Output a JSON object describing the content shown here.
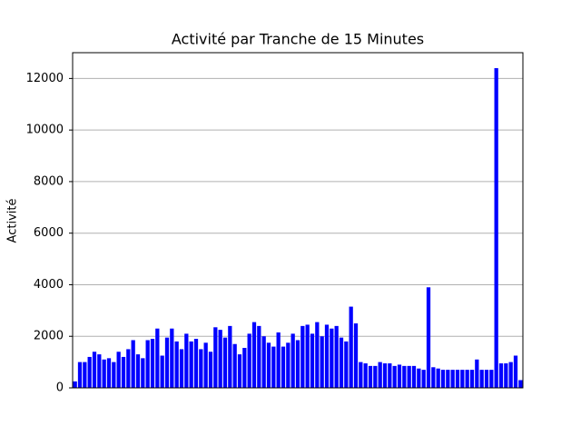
{
  "chart_data": {
    "type": "bar",
    "title": "Activité par Tranche de 15 Minutes",
    "ylabel": "Activité",
    "categories": [
      null,
      null,
      null,
      null,
      null,
      null,
      null,
      null,
      null,
      null,
      null,
      null,
      null,
      null,
      null,
      null,
      null,
      null,
      null,
      null,
      null,
      null,
      null,
      null,
      null,
      null,
      null,
      null,
      null,
      null,
      null,
      null,
      null,
      null,
      null,
      null,
      null,
      null,
      null,
      null,
      null,
      null,
      null,
      null,
      null,
      null,
      null,
      null,
      null,
      null,
      null,
      null,
      null,
      null,
      null,
      null,
      null,
      null,
      null,
      null,
      null,
      null,
      null,
      null,
      null,
      null,
      null,
      null,
      null,
      null,
      null,
      null,
      null,
      null,
      null,
      null,
      null,
      null,
      null,
      null,
      null,
      null,
      null,
      null,
      null,
      null,
      null,
      null,
      null,
      null,
      null,
      null,
      null
    ],
    "values": [
      250,
      1000,
      1000,
      1200,
      1400,
      1300,
      1100,
      1150,
      1000,
      1400,
      1200,
      1500,
      1850,
      1300,
      1150,
      1850,
      1900,
      2300,
      1250,
      1950,
      2300,
      1800,
      1500,
      2100,
      1800,
      1900,
      1500,
      1750,
      1400,
      2350,
      2250,
      1950,
      2400,
      1700,
      1300,
      1550,
      2100,
      2550,
      2400,
      2000,
      1750,
      1600,
      2150,
      1600,
      1750,
      2100,
      1850,
      2400,
      2450,
      2100,
      2550,
      2000,
      2450,
      2300,
      2400,
      1950,
      1800,
      3150,
      2500,
      1000,
      950,
      850,
      850,
      1000,
      950,
      950,
      850,
      900,
      850,
      850,
      850,
      750,
      700,
      3900,
      800,
      750,
      700,
      700,
      700,
      700,
      700,
      700,
      700,
      1100,
      700,
      700,
      700,
      12400,
      950,
      950,
      1000,
      1250,
      300
    ],
    "color": "#0000ff",
    "ylim": [
      0,
      13000
    ],
    "yticks": [
      0,
      2000,
      4000,
      6000,
      8000,
      10000,
      12000
    ],
    "grid": true
  }
}
